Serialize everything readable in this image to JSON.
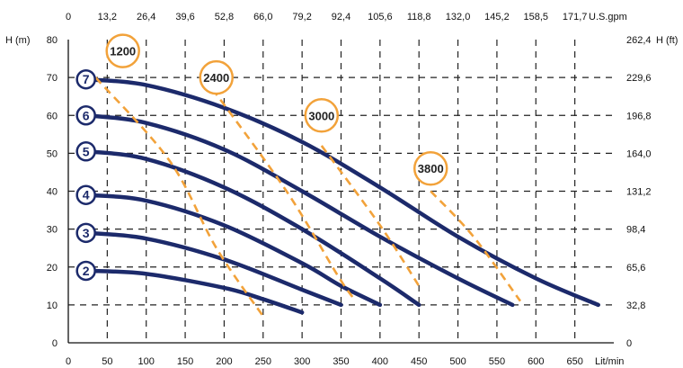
{
  "chart_data": {
    "type": "line",
    "x_bottom": {
      "unit": "Lit/min",
      "min": 0,
      "max": 700,
      "ticks": [
        "0",
        "50",
        "100",
        "150",
        "200",
        "250",
        "300",
        "350",
        "400",
        "450",
        "500",
        "550",
        "600",
        "650"
      ]
    },
    "x_top": {
      "unit": "U.S.gpm",
      "ticks": [
        "0",
        "13,2",
        "26,4",
        "39,6",
        "52,8",
        "66,0",
        "79,2",
        "92,4",
        "105,6",
        "118,8",
        "132,0",
        "145,2",
        "158,5",
        "171,7"
      ]
    },
    "y_left": {
      "label": "H (m)",
      "min": 0,
      "max": 80,
      "ticks": [
        "0",
        "10",
        "20",
        "30",
        "40",
        "50",
        "60",
        "70",
        "80"
      ]
    },
    "y_right": {
      "label": "H (ft)",
      "ticks": [
        "0",
        "32,8",
        "65,6",
        "98,4",
        "131,2",
        "164,0",
        "196,8",
        "229,6",
        "262,4"
      ]
    },
    "grid": true,
    "grid_style": "dashed",
    "series": [
      {
        "name": "2",
        "x": [
          25,
          100,
          200,
          250,
          300
        ],
        "y": [
          19,
          18.2,
          14.5,
          11.5,
          8
        ]
      },
      {
        "name": "3",
        "x": [
          25,
          100,
          200,
          300,
          350
        ],
        "y": [
          29,
          27.5,
          22,
          14,
          10
        ]
      },
      {
        "name": "4",
        "x": [
          25,
          100,
          200,
          300,
          350,
          400
        ],
        "y": [
          39,
          37.5,
          31,
          21,
          15,
          10
        ]
      },
      {
        "name": "5",
        "x": [
          25,
          100,
          200,
          300,
          400,
          450
        ],
        "y": [
          50.5,
          48.5,
          41,
          30,
          17,
          10
        ]
      },
      {
        "name": "6",
        "x": [
          25,
          100,
          200,
          300,
          400,
          500,
          570
        ],
        "y": [
          60,
          58,
          51,
          40,
          28,
          17,
          10
        ]
      },
      {
        "name": "7",
        "x": [
          25,
          100,
          200,
          300,
          400,
          500,
          600,
          680
        ],
        "y": [
          69.5,
          68,
          62,
          53,
          41,
          28,
          17,
          10
        ]
      }
    ],
    "rpm_lines": [
      {
        "label": "1200",
        "x": [
          35,
          130,
          190,
          250
        ],
        "y": [
          70,
          48,
          25,
          7
        ]
      },
      {
        "label": "2400",
        "x": [
          185,
          280,
          345,
          365
        ],
        "y": [
          67,
          40,
          18,
          12
        ]
      },
      {
        "label": "3000",
        "x": [
          325,
          400,
          450
        ],
        "y": [
          52,
          31,
          15
        ]
      },
      {
        "label": "3800",
        "x": [
          465,
          520,
          580
        ],
        "y": [
          40,
          28,
          11
        ]
      }
    ],
    "rpm_markers": [
      {
        "label": "1200",
        "x": 70,
        "y": 77
      },
      {
        "label": "2400",
        "x": 190,
        "y": 70
      },
      {
        "label": "3000",
        "x": 325,
        "y": 60
      },
      {
        "label": "3800",
        "x": 465,
        "y": 46
      }
    ],
    "curve_color": "#1c2a6b",
    "rpm_color": "#f2a23a"
  }
}
